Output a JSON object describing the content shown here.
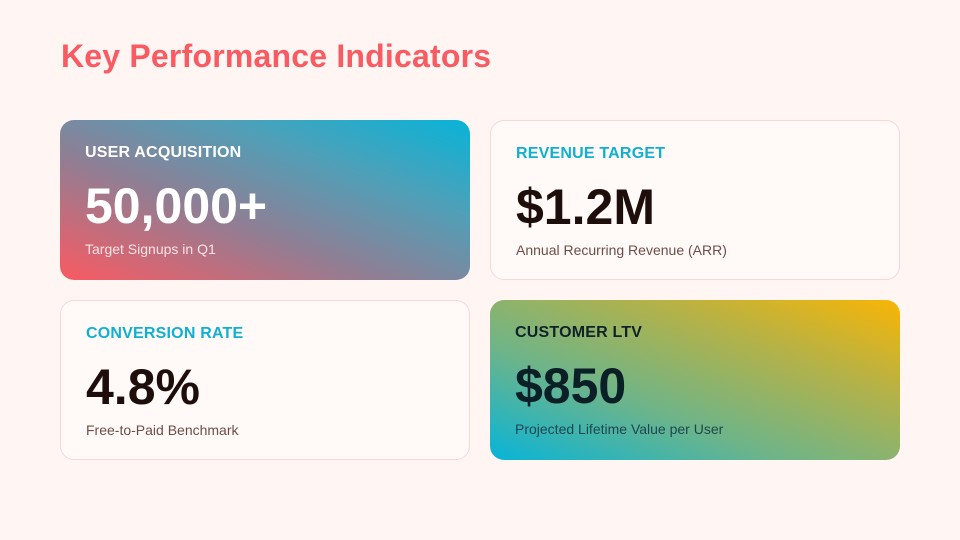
{
  "slide": {
    "title": "Key Performance Indicators",
    "colors": {
      "background": "#fff6f3",
      "title": "#fa5a62",
      "accent_cyan": "#0fb0d2",
      "accent_coral": "#fa5a62",
      "accent_amber": "#f9b505"
    }
  },
  "cards": [
    {
      "label": "USER ACQUISITION",
      "value": "50,000+",
      "subtitle": "Target Signups in Q1",
      "style": "gradient-coral-to-cyan"
    },
    {
      "label": "REVENUE TARGET",
      "value": "$1.2M",
      "subtitle": "Annual Recurring Revenue (ARR)",
      "style": "plain"
    },
    {
      "label": "CONVERSION RATE",
      "value": "4.8%",
      "subtitle": "Free-to-Paid Benchmark",
      "style": "plain"
    },
    {
      "label": "CUSTOMER LTV",
      "value": "$850",
      "subtitle": "Projected Lifetime Value per User",
      "style": "gradient-cyan-to-amber"
    }
  ]
}
